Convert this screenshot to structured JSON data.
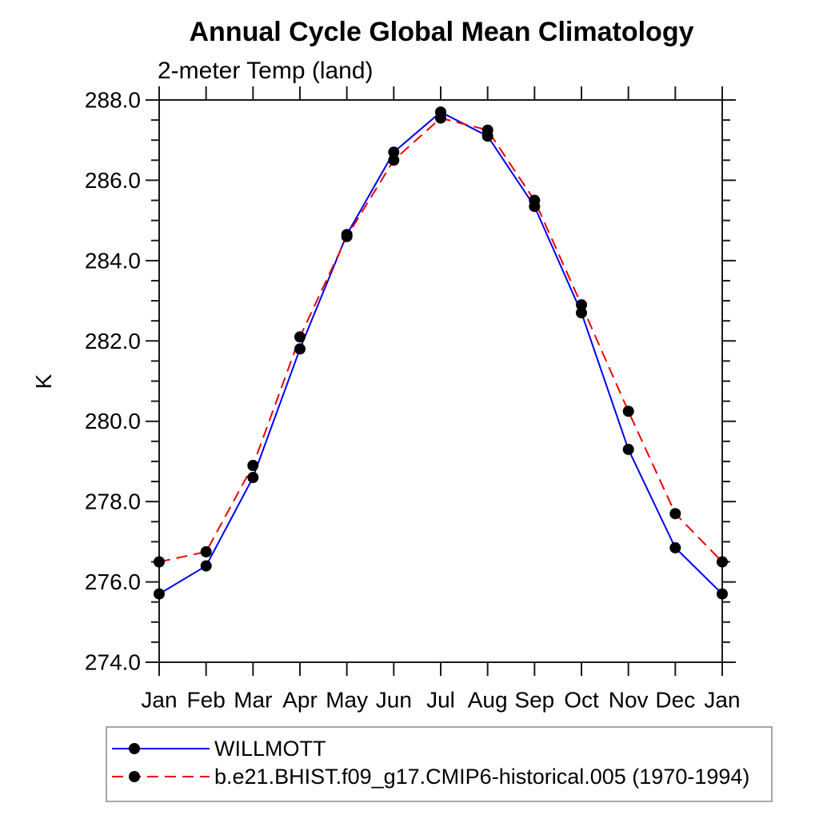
{
  "title": "Annual Cycle Global Mean Climatology",
  "subtitle": "2-meter Temp (land)",
  "chart_data": {
    "type": "line",
    "title": "Annual Cycle Global Mean Climatology",
    "subtitle": "2-meter Temp (land)",
    "xlabel": "",
    "ylabel": "K",
    "ylim": [
      274.0,
      288.0
    ],
    "y_major_step": 2.0,
    "y_minor_step": 0.5,
    "y_tick_labels": [
      "274.0",
      "276.0",
      "278.0",
      "280.0",
      "282.0",
      "284.0",
      "286.0",
      "288.0"
    ],
    "x_categories": [
      "Jan",
      "Feb",
      "Mar",
      "Apr",
      "May",
      "Jun",
      "Jul",
      "Aug",
      "Sep",
      "Oct",
      "Nov",
      "Dec",
      "Jan"
    ],
    "grid": false,
    "legend_position": "bottom-left-box",
    "marker": "filled-circle",
    "marker_color": "#000000",
    "series": [
      {
        "id": "willmott",
        "name": "WILLMOTT",
        "color": "#0000ee",
        "style": "solid",
        "values": [
          275.7,
          276.4,
          278.6,
          281.8,
          284.65,
          286.7,
          287.7,
          287.1,
          285.35,
          282.7,
          279.3,
          276.85,
          275.7
        ]
      },
      {
        "id": "model",
        "name": "b.e21.BHIST.f09_g17.CMIP6-historical.005 (1970-1994)",
        "color": "#ee0000",
        "style": "dashed",
        "values": [
          276.5,
          276.75,
          278.9,
          282.1,
          284.6,
          286.5,
          287.55,
          287.25,
          285.5,
          282.9,
          280.25,
          277.7,
          276.5
        ]
      }
    ]
  }
}
